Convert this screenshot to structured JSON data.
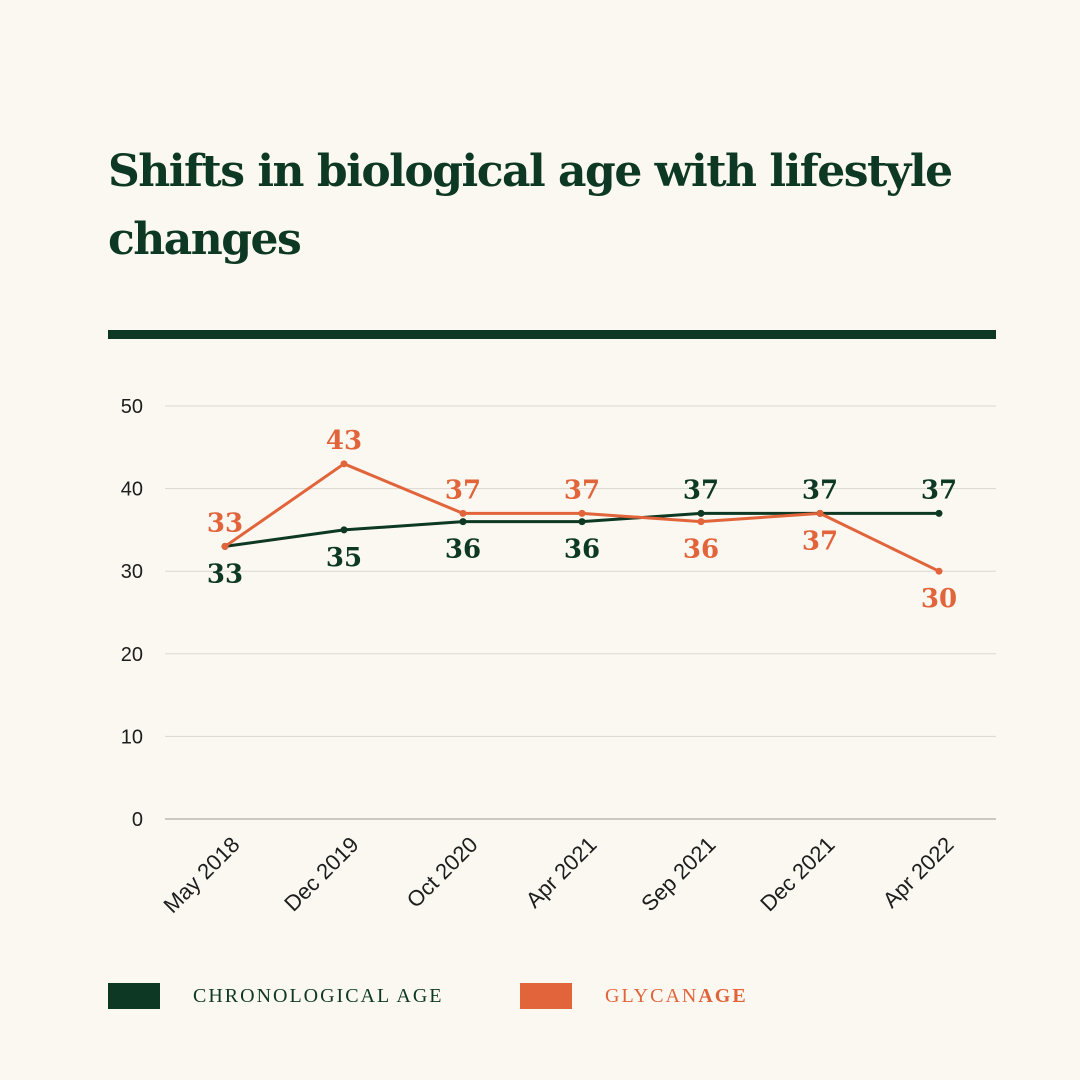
{
  "title": "Shifts in biological age with lifestyle changes",
  "colors": {
    "chronological": "#0d3823",
    "glycan": "#e2643a",
    "grid": "#d9d7cf",
    "axis": "#9a9a9a"
  },
  "legend": {
    "chronological_label": "CHRONOLOGICAL AGE",
    "glycan_label_part1": "GLYCAN",
    "glycan_label_part2": "AGE"
  },
  "chart_data": {
    "type": "line",
    "categories": [
      "May 2018",
      "Dec 2019",
      "Oct 2020",
      "Apr 2021",
      "Sep 2021",
      "Dec 2021",
      "Apr 2022"
    ],
    "series": [
      {
        "name": "CHRONOLOGICAL AGE",
        "values": [
          33,
          35,
          36,
          36,
          37,
          37,
          37
        ],
        "label_position": [
          "below",
          "below",
          "below",
          "below",
          "above",
          "above",
          "above"
        ]
      },
      {
        "name": "GLYCANAGE",
        "values": [
          33,
          43,
          37,
          37,
          36,
          37,
          30
        ],
        "label_position": [
          "above",
          "above",
          "above",
          "above",
          "below",
          "below",
          "below"
        ]
      }
    ],
    "ylim": [
      0,
      50
    ],
    "yticks": [
      0,
      10,
      20,
      30,
      40,
      50
    ],
    "grid": true,
    "legend": "bottom",
    "xlabel": "",
    "ylabel": ""
  }
}
